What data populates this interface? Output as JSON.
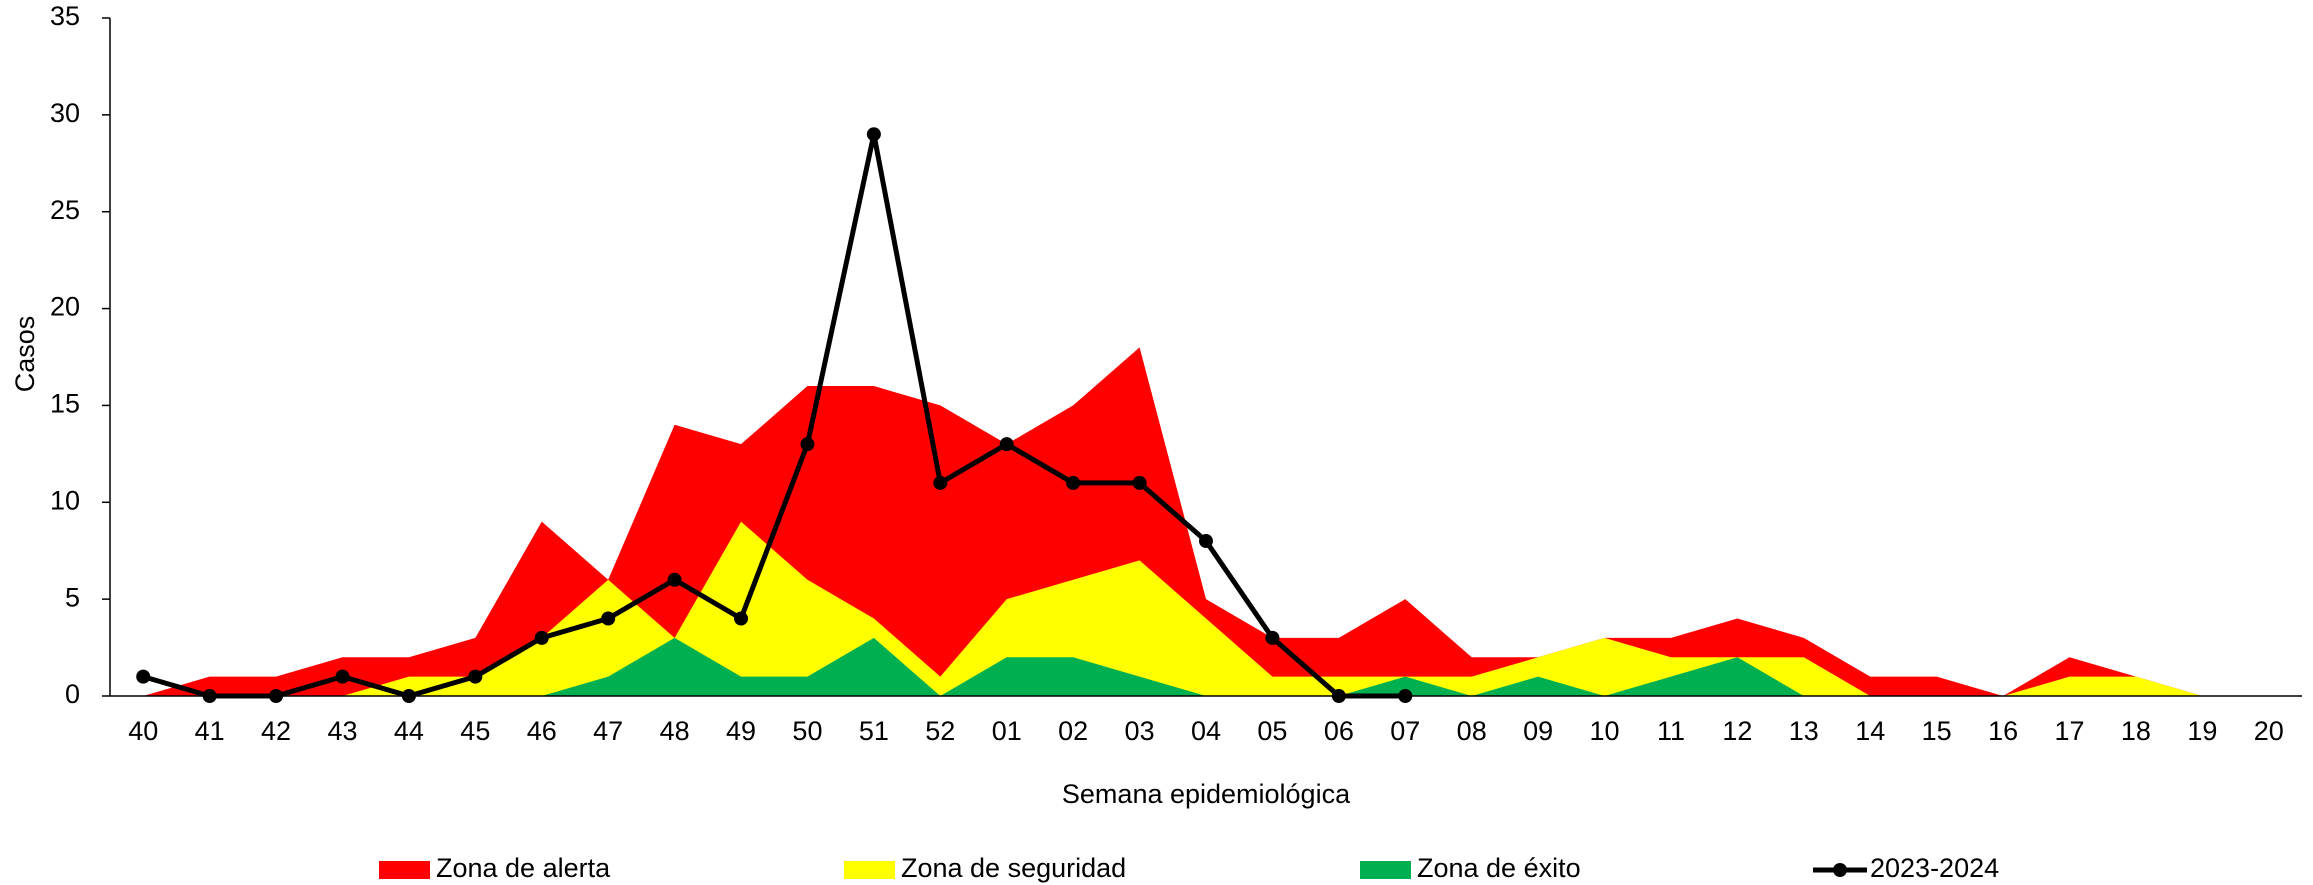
{
  "chart_data": {
    "type": "area",
    "x_label": "Semana epidemiológica",
    "y_label": "Casos",
    "categories": [
      "40",
      "41",
      "42",
      "43",
      "44",
      "45",
      "46",
      "47",
      "48",
      "49",
      "50",
      "51",
      "52",
      "01",
      "02",
      "03",
      "04",
      "05",
      "06",
      "07",
      "08",
      "09",
      "10",
      "11",
      "12",
      "13",
      "14",
      "15",
      "16",
      "17",
      "18",
      "19",
      "20"
    ],
    "series": [
      {
        "name": "Zona de alerta",
        "type": "area",
        "color": "#ff0000",
        "values": [
          0,
          1,
          1,
          2,
          2,
          3,
          9,
          6,
          14,
          13,
          16,
          16,
          15,
          13,
          15,
          18,
          5,
          3,
          3,
          5,
          2,
          2,
          3,
          3,
          4,
          3,
          1,
          1,
          0,
          2,
          1,
          0,
          0
        ]
      },
      {
        "name": "Zona de seguridad",
        "type": "area",
        "color": "#ffff00",
        "values": [
          0,
          0,
          0,
          0,
          1,
          1,
          3,
          6,
          3,
          9,
          6,
          4,
          1,
          5,
          6,
          7,
          4,
          1,
          1,
          1,
          1,
          2,
          3,
          2,
          2,
          2,
          0,
          0,
          0,
          1,
          1,
          0,
          0
        ]
      },
      {
        "name": "Zona de éxito",
        "type": "area",
        "color": "#00b050",
        "values": [
          0,
          0,
          0,
          0,
          0,
          0,
          0,
          1,
          3,
          1,
          1,
          3,
          0,
          2,
          2,
          1,
          0,
          0,
          0,
          1,
          0,
          1,
          0,
          1,
          2,
          0,
          0,
          0,
          0,
          0,
          0,
          0,
          0
        ]
      },
      {
        "name": "2023-2024",
        "type": "line",
        "color": "#000000",
        "values": [
          1,
          0,
          0,
          1,
          0,
          1,
          3,
          4,
          6,
          4,
          13,
          29,
          11,
          13,
          11,
          11,
          8,
          3,
          0,
          0,
          null,
          null,
          null,
          null,
          null,
          null,
          null,
          null,
          null,
          null,
          null,
          null,
          null
        ]
      }
    ],
    "ylim": [
      0,
      35
    ],
    "yticks": [
      0,
      5,
      10,
      15,
      20,
      25,
      30,
      35
    ],
    "legend": "bottom"
  }
}
